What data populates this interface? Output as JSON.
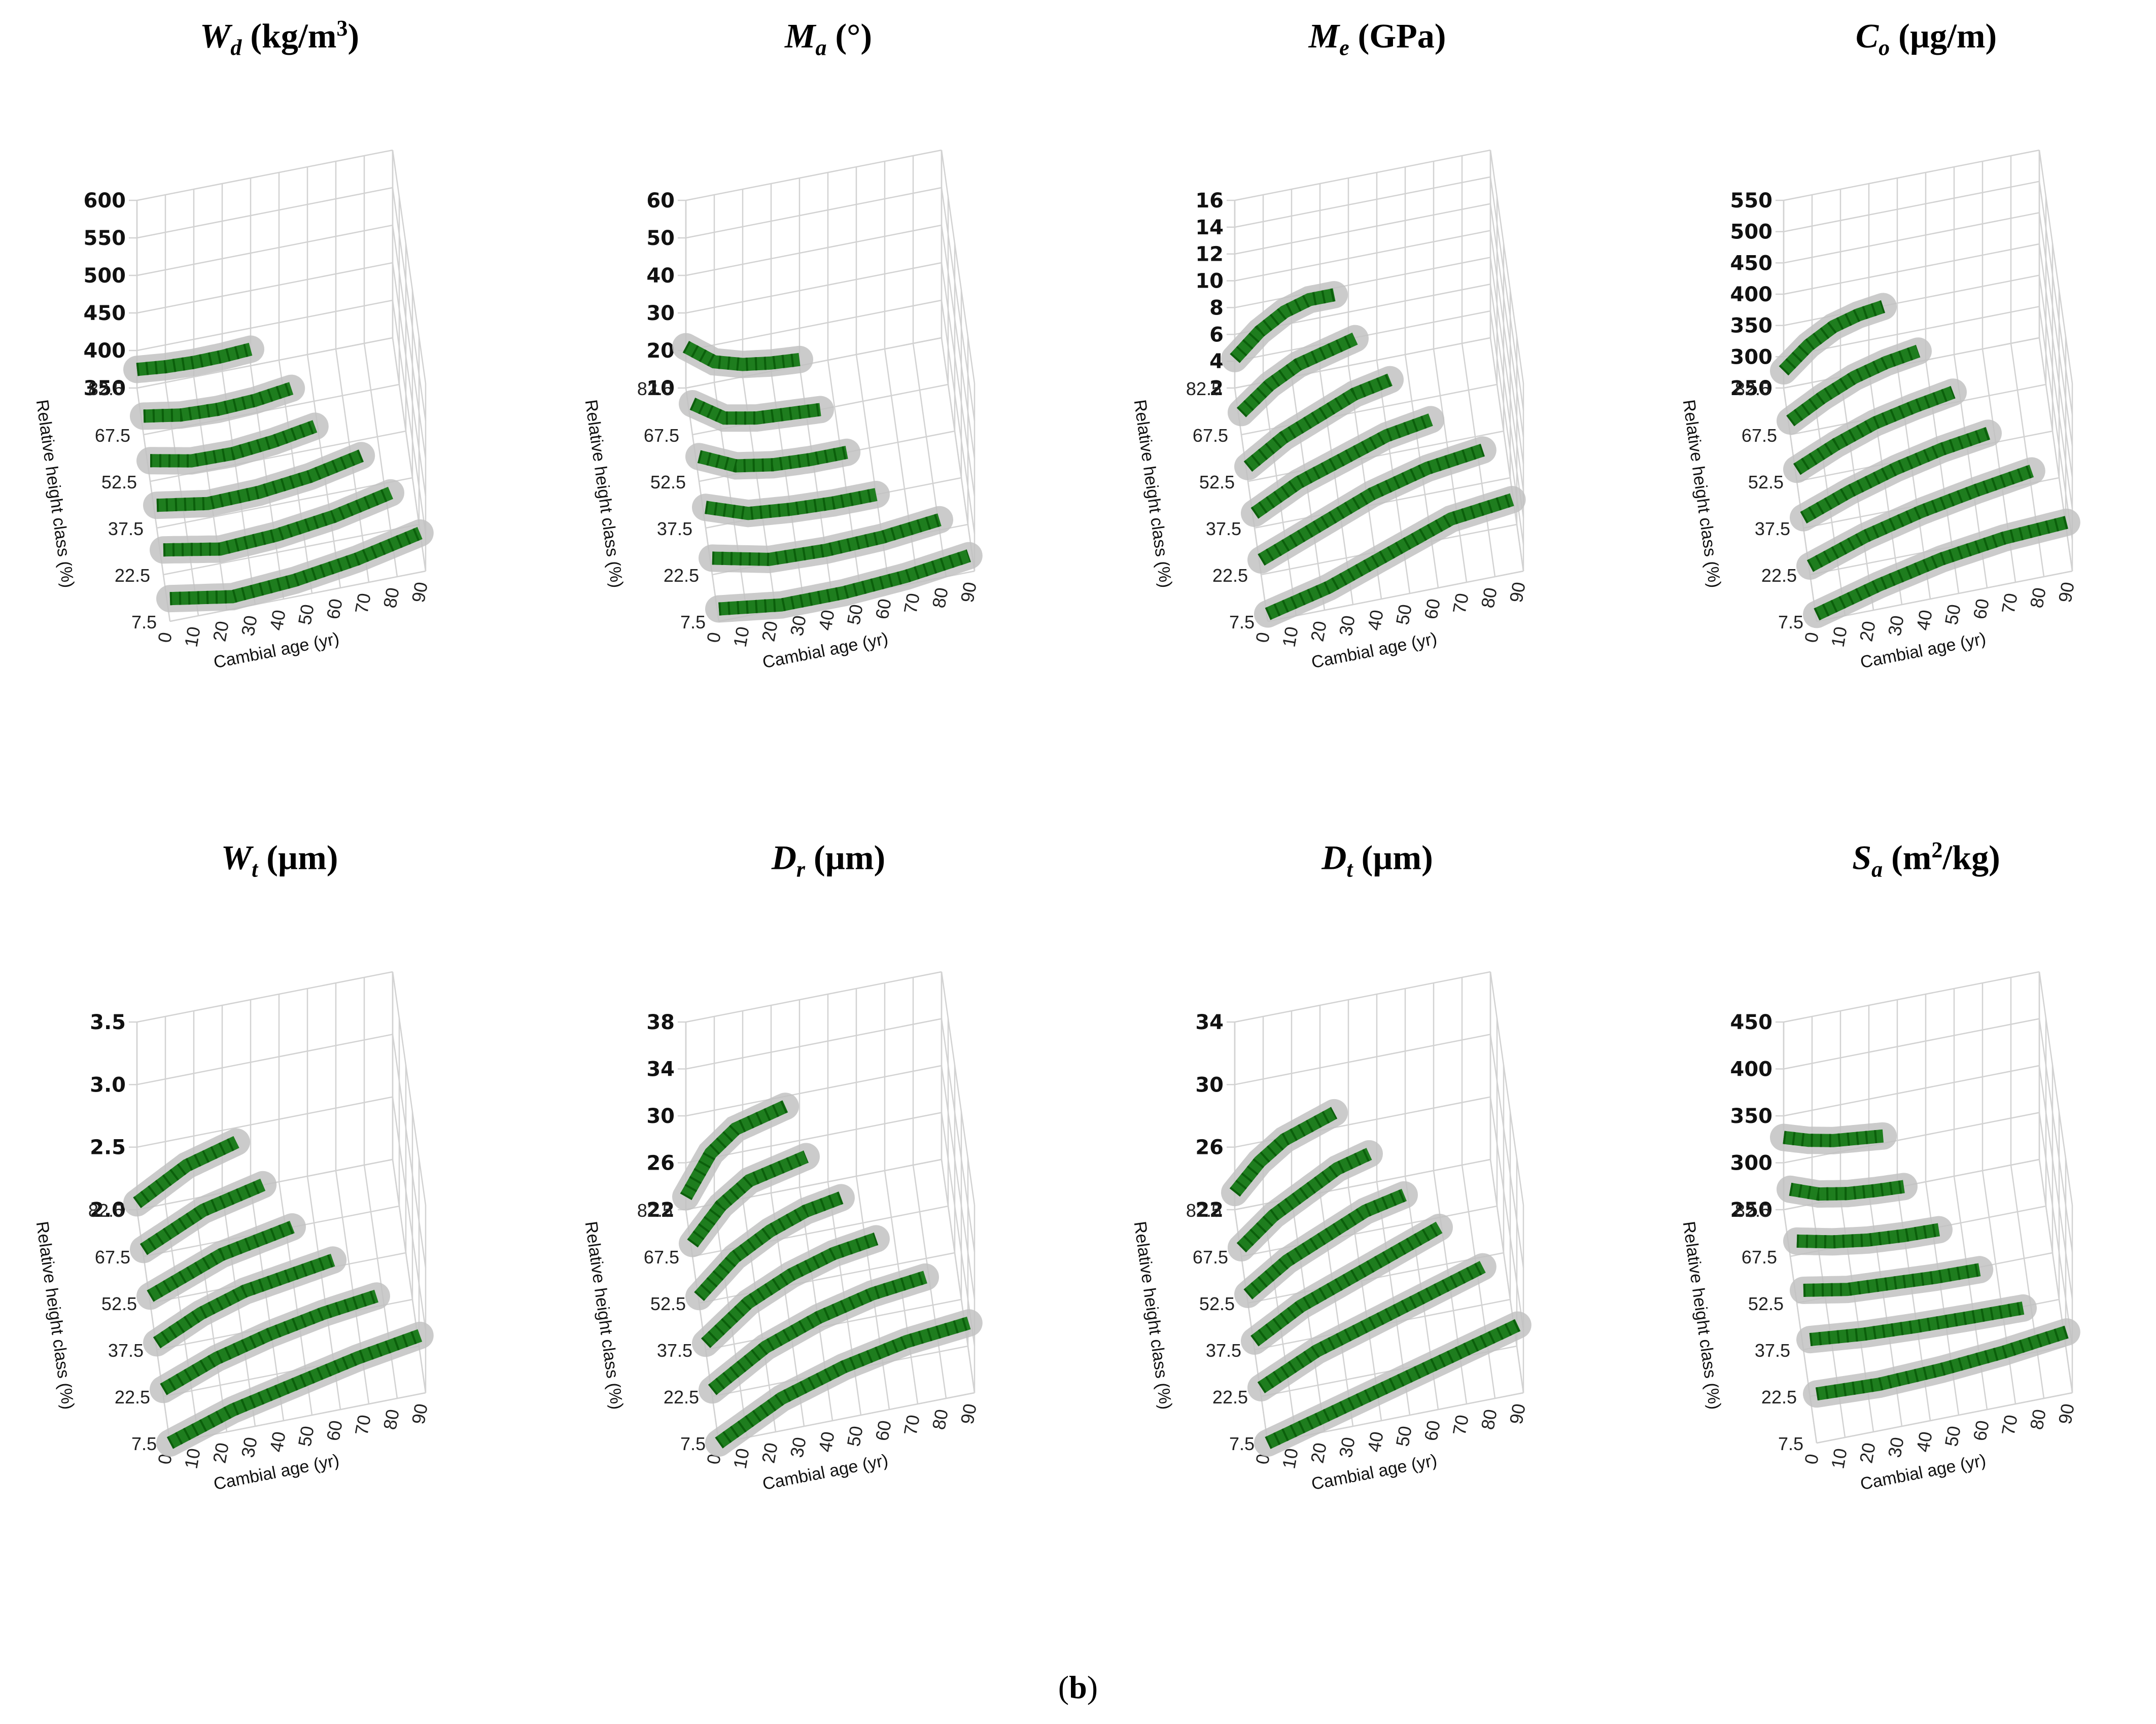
{
  "figure": {
    "caption_open": "(",
    "caption_letter": "b",
    "caption_close": ")"
  },
  "colors": {
    "fit": "#1e7d1e",
    "observed": "#c2c2c2",
    "grid": "#d2d2d2"
  },
  "chart_data": [
    {
      "id": "wd",
      "type": "line",
      "title_sym": "W",
      "title_sub": "d",
      "title_unit": " (kg/m",
      "title_sup": "3",
      "title_tail": ")",
      "zlabel_ticks": [
        "600",
        "550",
        "500",
        "450",
        "400",
        "350"
      ],
      "zlim": [
        350,
        600
      ],
      "ylabel": "Relative height class (%)",
      "yticks": [
        "82.5",
        "67.5",
        "52.5",
        "37.5",
        "22.5",
        "7.5"
      ],
      "xlabel": "Cambial age (yr)",
      "xticks": [
        "0",
        "10",
        "20",
        "30",
        "40",
        "50",
        "60",
        "70",
        "80",
        "90"
      ],
      "xlim": [
        0,
        90
      ],
      "series": [
        {
          "name": "82.5",
          "x_max": 40,
          "values": [
            395,
            388,
            385,
            386,
            390
          ]
        },
        {
          "name": "67.5",
          "x_max": 52,
          "values": [
            395,
            380,
            376,
            380,
            392
          ]
        },
        {
          "name": "52.5",
          "x_max": 58,
          "values": [
            400,
            380,
            378,
            388,
            405
          ]
        },
        {
          "name": "37.5",
          "x_max": 72,
          "values": [
            405,
            385,
            388,
            402,
            428
          ]
        },
        {
          "name": "22.5",
          "x_max": 80,
          "values": [
            410,
            385,
            392,
            410,
            440
          ]
        },
        {
          "name": "7.5",
          "x_max": 88,
          "values": [
            405,
            380,
            390,
            412,
            445
          ]
        }
      ]
    },
    {
      "id": "ma",
      "type": "line",
      "title_sym": "M",
      "title_sub": "a",
      "title_unit": " (°)",
      "title_sup": "",
      "title_tail": "",
      "zlabel_ticks": [
        "60",
        "50",
        "40",
        "30",
        "20",
        "10"
      ],
      "zlim": [
        10,
        60
      ],
      "ylabel": "Relative height class (%)",
      "yticks": [
        "82.5",
        "67.5",
        "52.5",
        "37.5",
        "22.5",
        "7.5"
      ],
      "xlabel": "Cambial age (yr)",
      "xticks": [
        "0",
        "10",
        "20",
        "30",
        "40",
        "50",
        "60",
        "70",
        "80",
        "90"
      ],
      "xlim": [
        0,
        90
      ],
      "series": [
        {
          "name": "82.5",
          "x_max": 40,
          "values": [
            30,
            20,
            16,
            14,
            13
          ]
        },
        {
          "name": "67.5",
          "x_max": 45,
          "values": [
            25,
            15,
            12,
            11,
            10
          ]
        },
        {
          "name": "52.5",
          "x_max": 52,
          "values": [
            22,
            14,
            11,
            10,
            10
          ]
        },
        {
          "name": "37.5",
          "x_max": 60,
          "values": [
            20,
            13,
            11,
            10,
            10
          ]
        },
        {
          "name": "22.5",
          "x_max": 80,
          "values": [
            18,
            12,
            11,
            12,
            15
          ]
        },
        {
          "name": "7.5",
          "x_max": 88,
          "values": [
            16,
            12,
            12,
            14,
            18
          ]
        }
      ]
    },
    {
      "id": "me",
      "type": "line",
      "title_sym": "M",
      "title_sub": "e",
      "title_unit": " (GPa)",
      "title_sup": "",
      "title_tail": "",
      "zlabel_ticks": [
        "16",
        "14",
        "12",
        "10",
        "8",
        "6",
        "4",
        "2"
      ],
      "zlim": [
        2,
        16
      ],
      "ylabel": "Relative height class (%)",
      "yticks": [
        "82.5",
        "67.5",
        "52.5",
        "37.5",
        "22.5",
        "7.5"
      ],
      "xlabel": "Cambial age (yr)",
      "xticks": [
        "0",
        "10",
        "20",
        "30",
        "40",
        "50",
        "60",
        "70",
        "80",
        "90"
      ],
      "xlim": [
        0,
        90
      ],
      "series": [
        {
          "name": "82.5",
          "x_max": 35,
          "values": [
            6,
            9,
            11,
            12,
            12
          ]
        },
        {
          "name": "67.5",
          "x_max": 40,
          "values": [
            5,
            8,
            10,
            11,
            12
          ]
        },
        {
          "name": "52.5",
          "x_max": 50,
          "values": [
            4,
            7,
            9,
            11,
            12
          ]
        },
        {
          "name": "37.5",
          "x_max": 62,
          "values": [
            4,
            7,
            9,
            11,
            12
          ]
        },
        {
          "name": "22.5",
          "x_max": 78,
          "values": [
            4,
            7,
            10,
            12,
            13
          ]
        },
        {
          "name": "7.5",
          "x_max": 86,
          "values": [
            3,
            5,
            8,
            11,
            12
          ]
        }
      ]
    },
    {
      "id": "co",
      "type": "line",
      "title_sym": "C",
      "title_sub": "o",
      "title_unit": " (µg/m)",
      "title_sup": "",
      "title_tail": "",
      "zlabel_ticks": [
        "550",
        "500",
        "450",
        "400",
        "350",
        "300",
        "250"
      ],
      "zlim": [
        250,
        550
      ],
      "ylabel": "Relative height class (%)",
      "yticks": [
        "82.5",
        "67.5",
        "52.5",
        "37.5",
        "22.5",
        "7.5"
      ],
      "xlabel": "Cambial age (yr)",
      "xticks": [
        "0",
        "10",
        "20",
        "30",
        "40",
        "50",
        "60",
        "70",
        "80",
        "90"
      ],
      "xlim": [
        0,
        90
      ],
      "series": [
        {
          "name": "82.5",
          "x_max": 35,
          "values": [
            300,
            360,
            400,
            420,
            430
          ]
        },
        {
          "name": "67.5",
          "x_max": 45,
          "values": [
            290,
            340,
            380,
            405,
            420
          ]
        },
        {
          "name": "52.5",
          "x_max": 55,
          "values": [
            285,
            335,
            375,
            400,
            420
          ]
        },
        {
          "name": "37.5",
          "x_max": 65,
          "values": [
            280,
            330,
            370,
            400,
            420
          ]
        },
        {
          "name": "22.5",
          "x_max": 78,
          "values": [
            275,
            330,
            370,
            400,
            425
          ]
        },
        {
          "name": "7.5",
          "x_max": 88,
          "values": [
            270,
            320,
            360,
            385,
            395
          ]
        }
      ]
    },
    {
      "id": "wt",
      "type": "line",
      "title_sym": "W",
      "title_sub": "t",
      "title_unit": " (µm)",
      "title_sup": "",
      "title_tail": "",
      "zlabel_ticks": [
        "3.5",
        "3.0",
        "2.5",
        "2.0"
      ],
      "zlim": [
        2.0,
        3.5
      ],
      "ylabel": "Relative height class (%)",
      "yticks": [
        "82.5",
        "67.5",
        "52.5",
        "37.5",
        "22.5",
        "7.5"
      ],
      "xlabel": "Cambial age (yr)",
      "xticks": [
        "0",
        "10",
        "20",
        "30",
        "40",
        "50",
        "60",
        "70",
        "80",
        "90"
      ],
      "xlim": [
        0,
        90
      ],
      "series": [
        {
          "name": "82.5",
          "x_max": 35,
          "values": [
            2.1,
            2.3,
            2.5,
            2.6,
            2.7
          ]
        },
        {
          "name": "67.5",
          "x_max": 42,
          "values": [
            2.1,
            2.3,
            2.5,
            2.6,
            2.7
          ]
        },
        {
          "name": "52.5",
          "x_max": 50,
          "values": [
            2.1,
            2.3,
            2.5,
            2.6,
            2.7
          ]
        },
        {
          "name": "37.5",
          "x_max": 62,
          "values": [
            2.1,
            2.4,
            2.6,
            2.7,
            2.8
          ]
        },
        {
          "name": "22.5",
          "x_max": 75,
          "values": [
            2.1,
            2.4,
            2.6,
            2.75,
            2.85
          ]
        },
        {
          "name": "7.5",
          "x_max": 88,
          "values": [
            2.0,
            2.3,
            2.5,
            2.7,
            2.85
          ]
        }
      ]
    },
    {
      "id": "dr",
      "type": "line",
      "title_sym": "D",
      "title_sub": "r",
      "title_unit": " (µm)",
      "title_sup": "",
      "title_tail": "",
      "zlabel_ticks": [
        "38",
        "34",
        "30",
        "26",
        "22"
      ],
      "zlim": [
        22,
        38
      ],
      "ylabel": "Relative height class (%)",
      "yticks": [
        "82.5",
        "67.5",
        "52.5",
        "37.5",
        "22.5",
        "7.5"
      ],
      "xlabel": "Cambial age (yr)",
      "xticks": [
        "0",
        "10",
        "20",
        "30",
        "40",
        "50",
        "60",
        "70",
        "80",
        "90"
      ],
      "xlim": [
        0,
        90
      ],
      "series": [
        {
          "name": "82.5",
          "x_max": 35,
          "values": [
            24,
            30,
            33,
            34,
            35
          ]
        },
        {
          "name": "67.5",
          "x_max": 40,
          "values": [
            24,
            29,
            32,
            33,
            34
          ]
        },
        {
          "name": "52.5",
          "x_max": 50,
          "values": [
            23,
            28,
            31,
            33,
            34
          ]
        },
        {
          "name": "37.5",
          "x_max": 60,
          "values": [
            23,
            28,
            31,
            33,
            34
          ]
        },
        {
          "name": "22.5",
          "x_max": 75,
          "values": [
            23,
            28,
            31,
            33,
            34
          ]
        },
        {
          "name": "7.5",
          "x_max": 88,
          "values": [
            22,
            27,
            30,
            32,
            33
          ]
        }
      ]
    },
    {
      "id": "dt",
      "type": "line",
      "title_sym": "D",
      "title_sub": "t",
      "title_unit": " (µm)",
      "title_sup": "",
      "title_tail": "",
      "zlabel_ticks": [
        "34",
        "30",
        "26",
        "22"
      ],
      "zlim": [
        22,
        34
      ],
      "ylabel": "Relative height class (%)",
      "yticks": [
        "82.5",
        "67.5",
        "52.5",
        "37.5",
        "22.5",
        "7.5"
      ],
      "xlabel": "Cambial age (yr)",
      "xticks": [
        "0",
        "10",
        "20",
        "30",
        "40",
        "50",
        "60",
        "70",
        "80",
        "90"
      ],
      "xlim": [
        0,
        90
      ],
      "series": [
        {
          "name": "82.5",
          "x_max": 35,
          "values": [
            24,
            27,
            29,
            30,
            31
          ]
        },
        {
          "name": "67.5",
          "x_max": 45,
          "values": [
            23,
            26,
            28,
            30,
            31
          ]
        },
        {
          "name": "52.5",
          "x_max": 55,
          "values": [
            23,
            26,
            28,
            30,
            31
          ]
        },
        {
          "name": "37.5",
          "x_max": 65,
          "values": [
            23,
            26,
            28,
            30,
            32
          ]
        },
        {
          "name": "22.5",
          "x_max": 78,
          "values": [
            23,
            26,
            28,
            30,
            32
          ]
        },
        {
          "name": "7.5",
          "x_max": 88,
          "values": [
            22,
            24,
            26,
            28,
            30
          ]
        }
      ]
    },
    {
      "id": "sa",
      "type": "line",
      "title_sym": "S",
      "title_sub": "a",
      "title_unit": " (m",
      "title_sup": "2",
      "title_tail": "/kg)",
      "zlabel_ticks": [
        "450",
        "400",
        "350",
        "300",
        "250"
      ],
      "zlim": [
        250,
        450
      ],
      "ylabel": "Relative height class (%)",
      "yticks": [
        "82.5",
        "67.5",
        "52.5",
        "37.5",
        "22.5",
        "7.5"
      ],
      "xlabel": "Cambial age (yr)",
      "xticks": [
        "0",
        "10",
        "20",
        "30",
        "40",
        "50",
        "60",
        "70",
        "80",
        "90"
      ],
      "xlim": [
        0,
        90
      ],
      "series": [
        {
          "name": "82.5",
          "x_max": 35,
          "values": [
            390,
            375,
            365,
            360,
            355
          ]
        },
        {
          "name": "67.5",
          "x_max": 40,
          "values": [
            380,
            360,
            350,
            345,
            342
          ]
        },
        {
          "name": "52.5",
          "x_max": 50,
          "values": [
            370,
            355,
            345,
            340,
            338
          ]
        },
        {
          "name": "37.5",
          "x_max": 62,
          "values": [
            365,
            350,
            345,
            340,
            338
          ]
        },
        {
          "name": "22.5",
          "x_max": 75,
          "values": [
            360,
            350,
            345,
            342,
            340
          ]
        },
        {
          "name": "7.5",
          "x_max": 88,
          "values": [
            345,
            340,
            345,
            355,
            370
          ]
        }
      ]
    }
  ]
}
